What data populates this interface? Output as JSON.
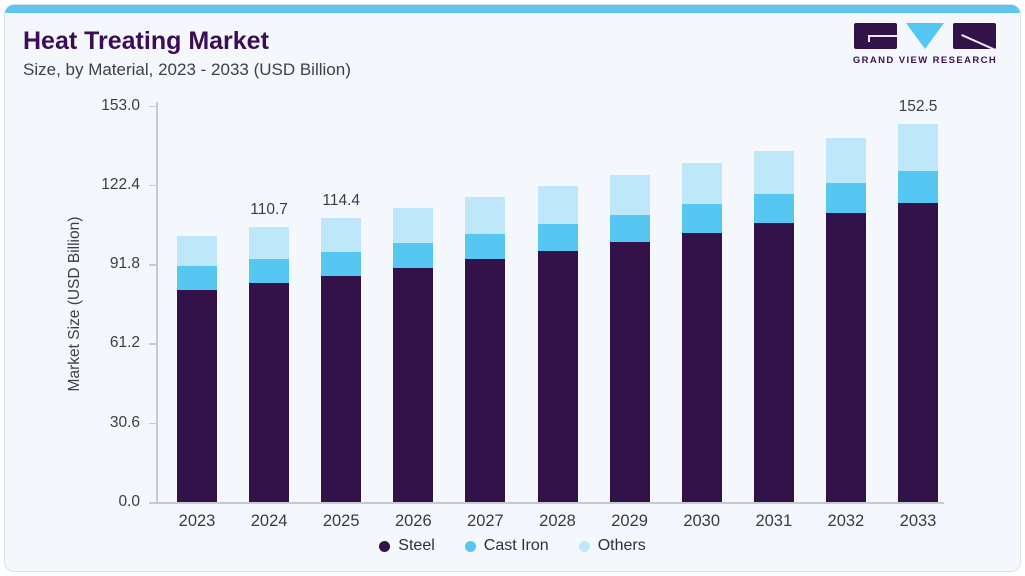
{
  "header": {
    "title": "Heat Treating Market",
    "subtitle": "Size, by Material, 2023 - 2033 (USD Billion)"
  },
  "logo": {
    "text": "GRAND VIEW RESEARCH"
  },
  "colors": {
    "accent_strip": "#5ec4ec",
    "title_purple": "#3a0d55",
    "text_dark": "#3d3d49",
    "axis_line": "#c3cad4",
    "card_background": "#f4f8fc",
    "card_border": "#d5e3ef"
  },
  "chart_data": {
    "type": "bar",
    "stacked": true,
    "title": "Heat Treating Market",
    "subtitle": "Size, by Material, 2023 - 2033 (USD Billion)",
    "xlabel": "",
    "ylabel": "Market Size (USD Billion)",
    "categories": [
      "2023",
      "2024",
      "2025",
      "2026",
      "2027",
      "2028",
      "2029",
      "2030",
      "2031",
      "2032",
      "2033"
    ],
    "series": [
      {
        "name": "Steel",
        "color": "#331249",
        "values": [
          85.6,
          88.3,
          91.2,
          94.4,
          97.8,
          101.2,
          104.8,
          108.5,
          112.4,
          116.5,
          120.6
        ]
      },
      {
        "name": "Cast Iron",
        "color": "#56c7f2",
        "values": [
          9.5,
          9.6,
          9.8,
          10.1,
          10.4,
          10.7,
          11.1,
          11.5,
          11.9,
          12.3,
          12.7
        ]
      },
      {
        "name": "Others",
        "color": "#bfe7fa",
        "values": [
          12.0,
          12.8,
          13.4,
          14.0,
          14.7,
          15.4,
          16.0,
          16.7,
          17.4,
          18.1,
          19.2
        ]
      }
    ],
    "totals": [
      107.1,
      110.7,
      114.4,
      118.5,
      122.9,
      127.3,
      131.9,
      136.7,
      141.7,
      146.9,
      152.5
    ],
    "bar_labels": [
      "",
      "110.7",
      "114.4",
      "",
      "",
      "",
      "",
      "",
      "",
      "",
      "152.5"
    ],
    "yticks": [
      0.0,
      30.6,
      61.2,
      91.8,
      122.4,
      153.0
    ],
    "ytick_labels": [
      "0.0",
      "30.6",
      "61.2",
      "91.8",
      "122.4",
      "153.0"
    ],
    "ylim": [
      0,
      153
    ],
    "grid": false,
    "legend_position": "bottom"
  }
}
